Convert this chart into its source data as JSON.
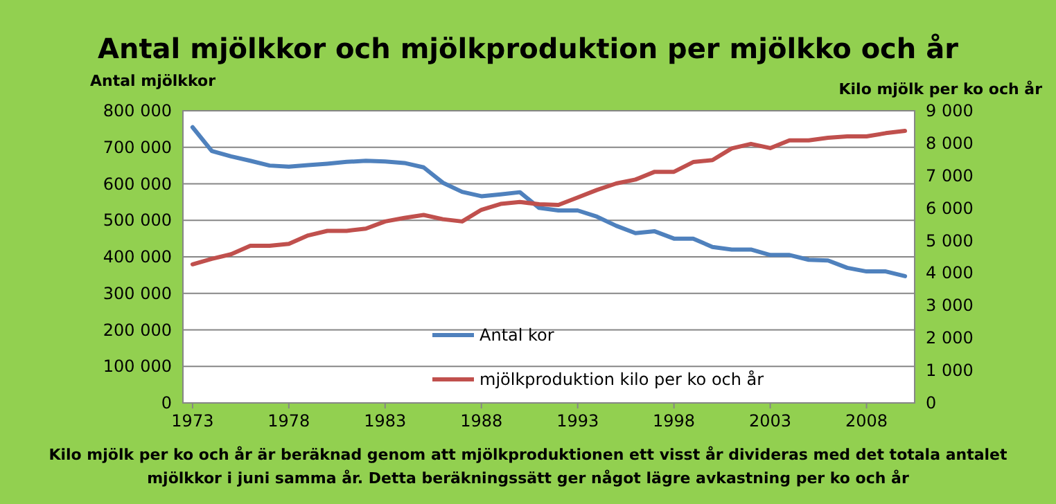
{
  "chart_data": {
    "type": "line",
    "title": "Antal mjölkkor och mjölkproduktion per mjölkko och år",
    "ylabel": "Antal mjölkkor",
    "y2label": "Kilo mjölk per ko och år",
    "annotations": [
      "Kilo mjölk per ko och år är beräknad genom att mjölkproduktionen ett visst år divideras med det totala antalet mjölkkor i juni samma år. Detta beräkningssätt ger något lägre avkastning per ko och år"
    ],
    "x": [
      1973,
      1974,
      1975,
      1976,
      1977,
      1978,
      1979,
      1980,
      1981,
      1982,
      1983,
      1984,
      1985,
      1986,
      1987,
      1988,
      1989,
      1990,
      1991,
      1992,
      1993,
      1994,
      1995,
      1996,
      1997,
      1998,
      1999,
      2000,
      2001,
      2002,
      2003,
      2004,
      2005,
      2006,
      2007,
      2008,
      2009,
      2010
    ],
    "xlim": [
      1972.5,
      2010.5
    ],
    "xticks": [
      1973,
      1978,
      1983,
      1988,
      1993,
      1998,
      2003,
      2008
    ],
    "ylim": [
      0,
      800000
    ],
    "yticks": [
      {
        "value": 0,
        "label": "0"
      },
      {
        "value": 100000,
        "label": "100 000"
      },
      {
        "value": 200000,
        "label": "200 000"
      },
      {
        "value": 300000,
        "label": "300 000"
      },
      {
        "value": 400000,
        "label": "400 000"
      },
      {
        "value": 500000,
        "label": "500 000"
      },
      {
        "value": 600000,
        "label": "600 000"
      },
      {
        "value": 700000,
        "label": "700 000"
      },
      {
        "value": 800000,
        "label": "800 000"
      }
    ],
    "y2lim": [
      0,
      9000
    ],
    "y2ticks": [
      0,
      {
        "value": 1000,
        "label": "1 000"
      },
      {
        "value": 2000,
        "label": "2 000"
      },
      {
        "value": 3000,
        "label": "3 000"
      },
      {
        "value": 4000,
        "label": "4 000"
      },
      {
        "value": 5000,
        "label": "5 000"
      },
      {
        "value": 6000,
        "label": "6 000"
      },
      {
        "value": 7000,
        "label": "7 000"
      },
      {
        "value": 8000,
        "label": "8 000"
      },
      {
        "value": 9000,
        "label": "9 000"
      }
    ],
    "grid": "y",
    "legend": "bottom",
    "marker": "none",
    "line_style": "solid",
    "series": [
      {
        "name": "Antal kor",
        "color": "#4f81bd",
        "values": [
          755000,
          690000,
          675000,
          663000,
          650000,
          647000,
          651000,
          655000,
          660000,
          663000,
          661000,
          657000,
          645000,
          603000,
          578000,
          566000,
          571000,
          577000,
          534000,
          527000,
          527000,
          510000,
          485000,
          465000,
          470000,
          450000,
          450000,
          427000,
          420000,
          420000,
          405000,
          405000,
          392000,
          390000,
          370000,
          360000,
          360000,
          347000
        ]
      },
      {
        "name": "mjölkproduktion kilo per ko och år",
        "color": "#c0504d",
        "axis": "y2",
        "values": [
          4270,
          4440,
          4580,
          4840,
          4840,
          4900,
          5160,
          5300,
          5300,
          5370,
          5590,
          5700,
          5790,
          5660,
          5590,
          5950,
          6130,
          6190,
          6120,
          6100,
          6330,
          6560,
          6760,
          6880,
          7120,
          7120,
          7420,
          7480,
          7840,
          7980,
          7850,
          8090,
          8090,
          8170,
          8210,
          8210,
          8310,
          8380
        ]
      }
    ]
  }
}
